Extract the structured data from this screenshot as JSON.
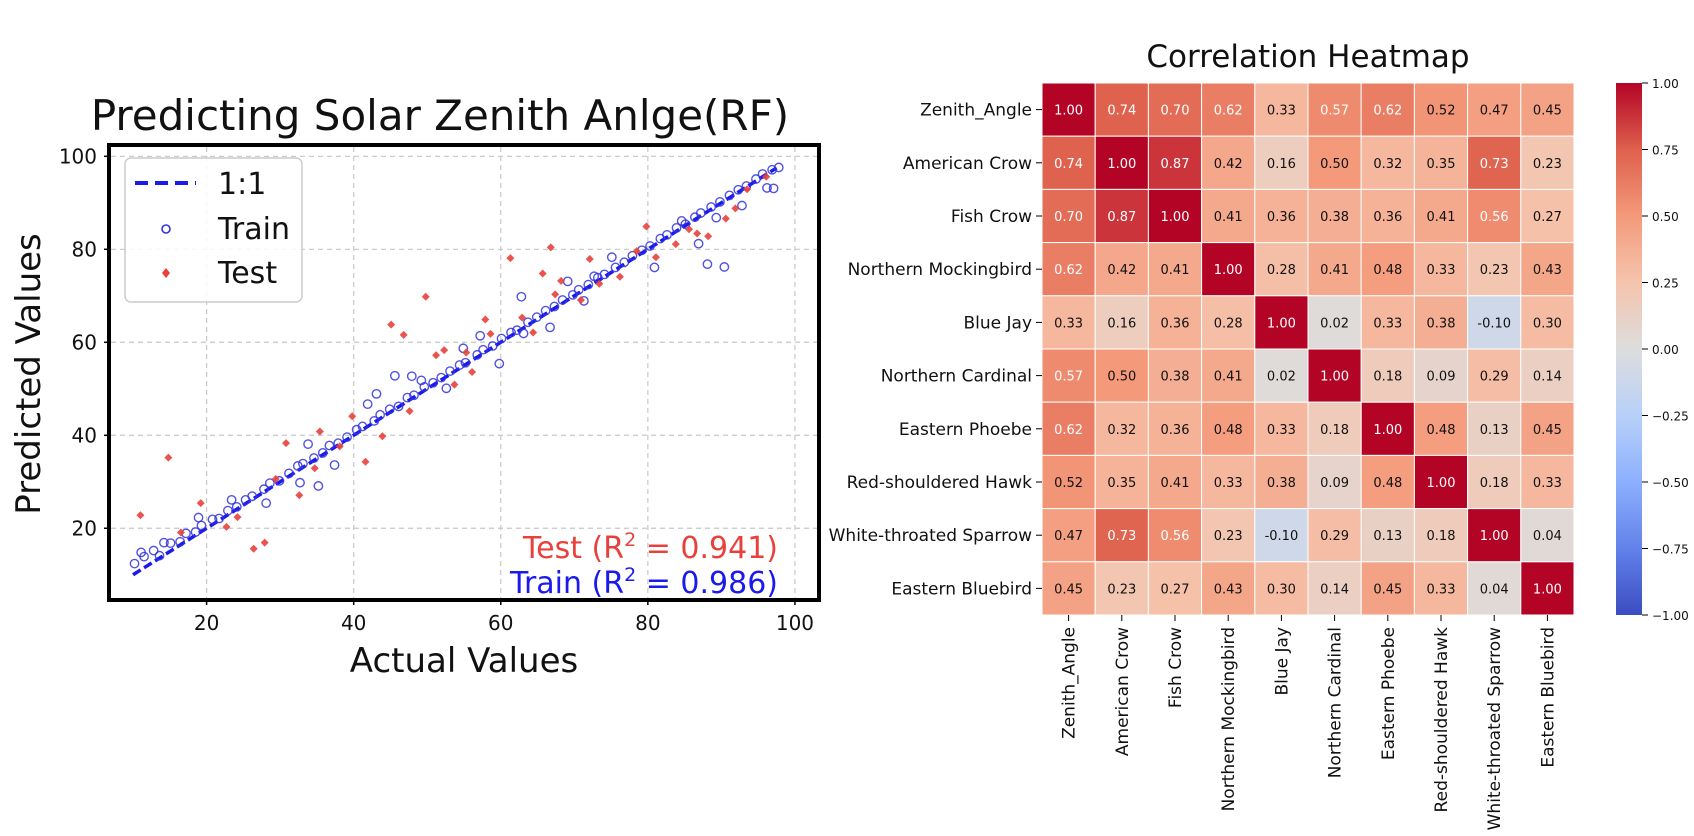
{
  "chart_data": [
    {
      "type": "scatter",
      "title": "Predicting Solar Zenith Anlge(RF)",
      "xlabel": "Actual Values",
      "ylabel": "Predicted Values",
      "xlim": [
        7,
        103
      ],
      "ylim": [
        5,
        102
      ],
      "xticks": [
        "20",
        "40",
        "60",
        "80",
        "100"
      ],
      "yticks": [
        "20",
        "40",
        "60",
        "80",
        "100"
      ],
      "grid": true,
      "legend_position": "top-left",
      "legend": {
        "line": "1:1",
        "train": "Train",
        "test": "Test"
      },
      "annotations": {
        "test_prefix": "Test (R",
        "test_sup": "2",
        "test_value": " =  0.941)",
        "train_prefix": "Train (R",
        "train_sup": "2",
        "train_value": " =  0.986)"
      },
      "colors": {
        "train": "#3333dd",
        "test": "#e8413c",
        "line": "#1a1aee"
      },
      "series": [
        {
          "name": "Train",
          "marker": "hollow-circle",
          "x": [
            10.2,
            11.5,
            12.8,
            13.6,
            15.1,
            16.4,
            17.2,
            18.5,
            19.3,
            20.8,
            21.7,
            22.9,
            24.1,
            25.3,
            26.2,
            27.8,
            28.6,
            29.9,
            31.2,
            32.4,
            33.1,
            34.6,
            35.8,
            36.7,
            37.9,
            39.1,
            40.4,
            41.2,
            42.8,
            43.6,
            44.9,
            46.1,
            47.3,
            48.2,
            49.6,
            50.8,
            51.9,
            53.1,
            54.4,
            55.2,
            56.8,
            57.6,
            58.9,
            60.1,
            61.4,
            62.2,
            63.7,
            64.9,
            66.1,
            67.3,
            68.4,
            69.8,
            70.6,
            71.9,
            73.2,
            74.1,
            75.6,
            76.8,
            77.9,
            79.2,
            80.3,
            81.7,
            82.6,
            83.9,
            85.1,
            86.4,
            87.2,
            88.6,
            89.8,
            91.1,
            92.3,
            93.4,
            94.7,
            95.6,
            96.9,
            97.8,
            14.2,
            18.9,
            23.4,
            28.1,
            32.7,
            37.4,
            43.1,
            47.9,
            52.6,
            57.2,
            62.8,
            66.7,
            71.3,
            75.1,
            80.9,
            84.6,
            89.3,
            92.8,
            96.2,
            33.8,
            41.9,
            45.6,
            54.9,
            59.8,
            69.1,
            88.1,
            90.4,
            35.2,
            49.2,
            63.1,
            72.7,
            86.9,
            97.1,
            11.1
          ],
          "y": [
            12.4,
            13.9,
            15.2,
            14.1,
            16.8,
            17.1,
            18.9,
            19.2,
            20.6,
            21.9,
            22.1,
            23.8,
            24.6,
            26.1,
            26.9,
            28.4,
            29.7,
            30.2,
            31.8,
            33.4,
            33.9,
            35.1,
            36.2,
            37.8,
            38.3,
            39.6,
            41.2,
            41.9,
            43.1,
            44.4,
            45.6,
            46.2,
            48.1,
            48.6,
            50.4,
            51.3,
            52.4,
            53.8,
            55.1,
            55.6,
            57.3,
            58.4,
            59.2,
            60.8,
            62.1,
            62.6,
            64.3,
            65.4,
            66.8,
            67.7,
            69.1,
            70.2,
            71.3,
            72.4,
            73.9,
            74.6,
            76.1,
            77.2,
            78.6,
            79.8,
            80.7,
            82.3,
            83.1,
            84.6,
            85.4,
            86.9,
            87.8,
            89.1,
            90.2,
            91.6,
            92.8,
            93.6,
            95.1,
            96.2,
            97.1,
            97.6,
            16.9,
            22.3,
            26.1,
            25.4,
            29.8,
            33.6,
            48.9,
            52.7,
            50.1,
            61.4,
            69.8,
            63.2,
            68.9,
            78.3,
            76.1,
            86.1,
            86.8,
            89.4,
            93.2,
            38.1,
            46.7,
            52.8,
            58.7,
            55.4,
            73.1,
            76.8,
            76.2,
            29.1,
            51.8,
            61.9,
            74.2,
            81.2,
            93.1,
            14.8
          ]
        },
        {
          "name": "Test",
          "marker": "diamond",
          "x": [
            11.0,
            14.8,
            16.5,
            19.2,
            22.7,
            26.4,
            27.9,
            30.8,
            32.6,
            35.4,
            38.1,
            41.6,
            43.9,
            45.1,
            47.6,
            49.8,
            51.2,
            53.7,
            56.1,
            58.6,
            61.3,
            62.9,
            64.4,
            66.8,
            68.2,
            70.9,
            73.4,
            76.2,
            78.5,
            81.1,
            83.8,
            85.6,
            88.2,
            90.6,
            93.5,
            96.1,
            29.4,
            34.7,
            46.8,
            52.3,
            57.9,
            65.7,
            72.1,
            79.8,
            86.7,
            91.9,
            24.2,
            39.8,
            55.3,
            67.4
          ],
          "y": [
            22.8,
            35.2,
            19.1,
            25.4,
            20.3,
            15.6,
            16.9,
            38.3,
            27.1,
            40.8,
            37.6,
            34.3,
            39.8,
            63.8,
            45.2,
            69.8,
            57.2,
            50.9,
            53.6,
            61.8,
            78.1,
            65.3,
            62.1,
            80.4,
            73.2,
            69.1,
            72.6,
            74.1,
            79.6,
            78.3,
            81.1,
            84.3,
            82.8,
            86.6,
            92.9,
            95.6,
            30.6,
            32.9,
            61.6,
            58.3,
            64.9,
            74.8,
            77.9,
            84.9,
            83.4,
            88.8,
            22.4,
            44.1,
            57.8,
            70.3
          ]
        }
      ]
    },
    {
      "type": "heatmap",
      "title": "Correlation Heatmap",
      "labels": [
        "Zenith_Angle",
        "American Crow",
        "Fish Crow",
        "Northern Mockingbird",
        "Blue Jay",
        "Northern Cardinal",
        "Eastern Phoebe",
        "Red-shouldered Hawk",
        "White-throated Sparrow",
        "Eastern Bluebird"
      ],
      "matrix": [
        [
          1.0,
          0.74,
          0.7,
          0.62,
          0.33,
          0.57,
          0.62,
          0.52,
          0.47,
          0.45
        ],
        [
          0.74,
          1.0,
          0.87,
          0.42,
          0.16,
          0.5,
          0.32,
          0.35,
          0.73,
          0.23
        ],
        [
          0.7,
          0.87,
          1.0,
          0.41,
          0.36,
          0.38,
          0.36,
          0.41,
          0.56,
          0.27
        ],
        [
          0.62,
          0.42,
          0.41,
          1.0,
          0.28,
          0.41,
          0.48,
          0.33,
          0.23,
          0.43
        ],
        [
          0.33,
          0.16,
          0.36,
          0.28,
          1.0,
          0.02,
          0.33,
          0.38,
          -0.1,
          0.3
        ],
        [
          0.57,
          0.5,
          0.38,
          0.41,
          0.02,
          1.0,
          0.18,
          0.09,
          0.29,
          0.14
        ],
        [
          0.62,
          0.32,
          0.36,
          0.48,
          0.33,
          0.18,
          1.0,
          0.48,
          0.13,
          0.45
        ],
        [
          0.52,
          0.35,
          0.41,
          0.33,
          0.38,
          0.09,
          0.48,
          1.0,
          0.18,
          0.33
        ],
        [
          0.47,
          0.73,
          0.56,
          0.23,
          -0.1,
          0.29,
          0.13,
          0.18,
          1.0,
          0.04
        ],
        [
          0.45,
          0.23,
          0.27,
          0.43,
          0.3,
          0.14,
          0.45,
          0.33,
          0.04,
          1.0
        ]
      ],
      "colormap": "coolwarm",
      "vmin": -1.0,
      "vmax": 1.0,
      "colorbar_ticks": [
        "1.00",
        "0.75",
        "0.50",
        "0.25",
        "0.00",
        "−0.25",
        "−0.50",
        "−0.75",
        "−1.00"
      ]
    }
  ]
}
